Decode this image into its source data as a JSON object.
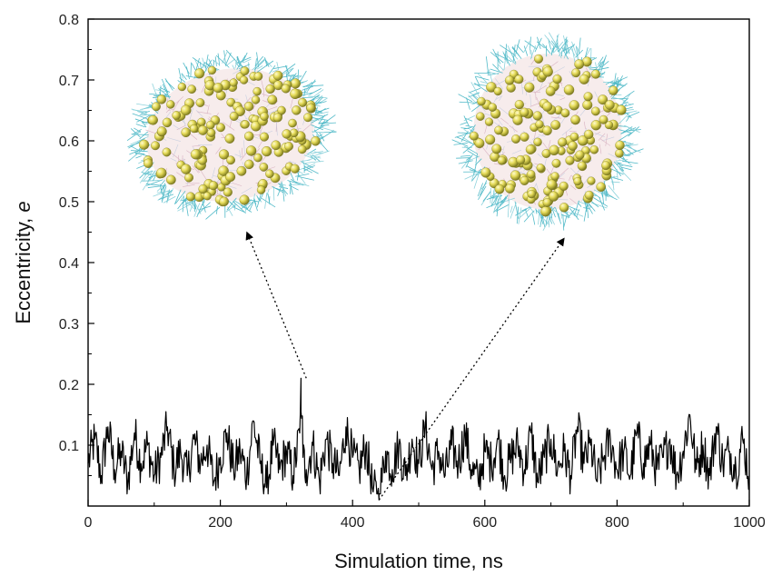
{
  "chart_data": {
    "type": "line",
    "xlabel": "Simulation time, ns",
    "ylabel_main": "Eccentricity, ",
    "ylabel_symbol": "e",
    "xlim": [
      0,
      1000
    ],
    "ylim": [
      0.0,
      0.8
    ],
    "x_ticks": [
      0,
      200,
      400,
      600,
      800,
      1000
    ],
    "x_tick_labels": [
      "0",
      "200",
      "400",
      "600",
      "800",
      "1000"
    ],
    "y_ticks": [
      0.1,
      0.2,
      0.3,
      0.4,
      0.5,
      0.6,
      0.7,
      0.8
    ],
    "y_tick_labels": [
      "0.1",
      "0.2",
      "0.3",
      "0.4",
      "0.5",
      "0.6",
      "0.7",
      "0.8"
    ],
    "grid": false,
    "series": [
      {
        "color": "#000000",
        "x": [
          0,
          10,
          20,
          30,
          40,
          50,
          60,
          70,
          80,
          90,
          100,
          110,
          120,
          130,
          140,
          150,
          160,
          170,
          180,
          190,
          200,
          210,
          220,
          230,
          240,
          250,
          260,
          270,
          280,
          290,
          300,
          310,
          320,
          322,
          325,
          330,
          340,
          350,
          360,
          370,
          380,
          390,
          400,
          410,
          420,
          430,
          440,
          450,
          460,
          470,
          480,
          490,
          500,
          510,
          520,
          530,
          540,
          550,
          560,
          570,
          580,
          590,
          600,
          610,
          620,
          630,
          640,
          650,
          660,
          670,
          680,
          690,
          700,
          710,
          720,
          730,
          740,
          750,
          760,
          770,
          780,
          790,
          800,
          810,
          820,
          830,
          840,
          850,
          860,
          870,
          880,
          890,
          900,
          910,
          920,
          930,
          940,
          950,
          960,
          970,
          980,
          990,
          1000
        ],
        "y": [
          0.07,
          0.11,
          0.05,
          0.13,
          0.06,
          0.09,
          0.04,
          0.12,
          0.07,
          0.1,
          0.05,
          0.08,
          0.13,
          0.06,
          0.09,
          0.05,
          0.11,
          0.07,
          0.1,
          0.04,
          0.08,
          0.12,
          0.06,
          0.09,
          0.05,
          0.14,
          0.07,
          0.03,
          0.1,
          0.06,
          0.09,
          0.05,
          0.12,
          0.21,
          0.08,
          0.06,
          0.1,
          0.04,
          0.11,
          0.07,
          0.05,
          0.13,
          0.08,
          0.06,
          0.1,
          0.03,
          0.01,
          0.09,
          0.06,
          0.1,
          0.05,
          0.11,
          0.07,
          0.13,
          0.06,
          0.09,
          0.05,
          0.1,
          0.07,
          0.12,
          0.06,
          0.04,
          0.09,
          0.07,
          0.11,
          0.05,
          0.08,
          0.1,
          0.06,
          0.12,
          0.04,
          0.08,
          0.11,
          0.06,
          0.09,
          0.05,
          0.13,
          0.07,
          0.1,
          0.04,
          0.08,
          0.11,
          0.06,
          0.09,
          0.05,
          0.12,
          0.07,
          0.1,
          0.06,
          0.08,
          0.11,
          0.05,
          0.09,
          0.15,
          0.06,
          0.1,
          0.05,
          0.13,
          0.07,
          0.09,
          0.06,
          0.11,
          0.05
        ]
      }
    ],
    "annotations": [
      {
        "type": "dotted-arrow",
        "from": [
          330,
          0.21
        ],
        "to": [
          240,
          0.45
        ]
      },
      {
        "type": "dotted-arrow",
        "from": [
          440,
          0.01
        ],
        "to": [
          720,
          0.44
        ]
      }
    ],
    "insets": [
      {
        "name": "deformed-micelle-snapshot",
        "kind": "molecular-render",
        "center": [
          215,
          0.61
        ]
      },
      {
        "name": "spherical-micelle-snapshot",
        "kind": "molecular-render",
        "center": [
          695,
          0.615
        ]
      }
    ]
  }
}
